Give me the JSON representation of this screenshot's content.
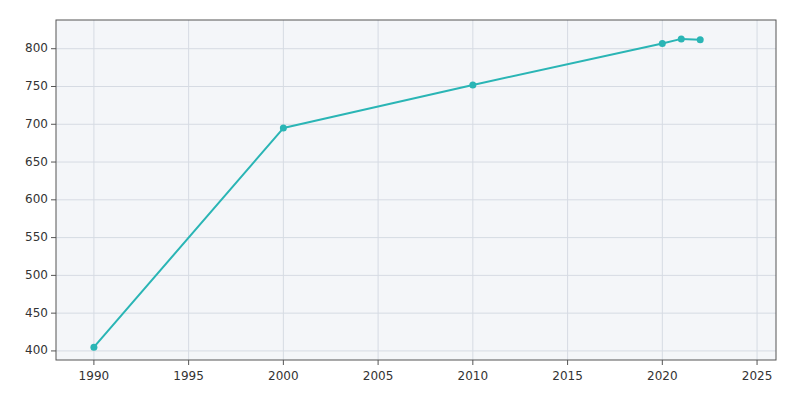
{
  "chart_data": {
    "type": "line",
    "x": [
      1990,
      2000,
      2010,
      2020,
      2021,
      2022
    ],
    "values": [
      405,
      695,
      752,
      807,
      813,
      812
    ],
    "color": "#2ab5b5",
    "marker": "circle",
    "xlim": [
      1988,
      2026
    ],
    "ylim": [
      388,
      838
    ],
    "xticks": [
      1990,
      1995,
      2000,
      2005,
      2010,
      2015,
      2020,
      2025
    ],
    "yticks": [
      400,
      450,
      500,
      550,
      600,
      650,
      700,
      750,
      800
    ],
    "grid": true
  }
}
